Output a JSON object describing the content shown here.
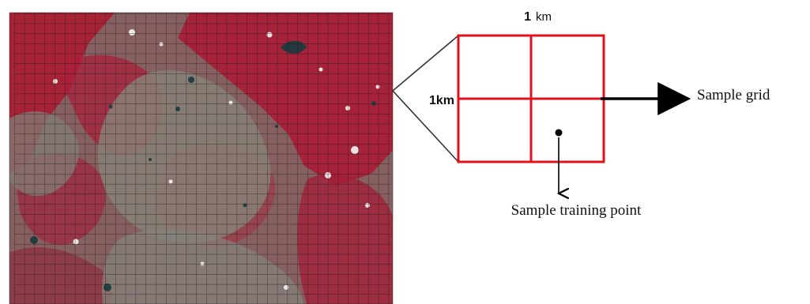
{
  "labels": {
    "top_distance_number": "1",
    "top_distance_unit": "km",
    "left_distance": "1km",
    "sample_grid": "Sample grid",
    "sample_training_point": "Sample training point"
  },
  "colors": {
    "grid_red": "#e0101e",
    "satellite_red": "#a61b34",
    "satellite_gray": "#7b7b72",
    "arrow_black": "#000000"
  },
  "image_subject": "false-color satellite image overlaid with a dense sample grid"
}
